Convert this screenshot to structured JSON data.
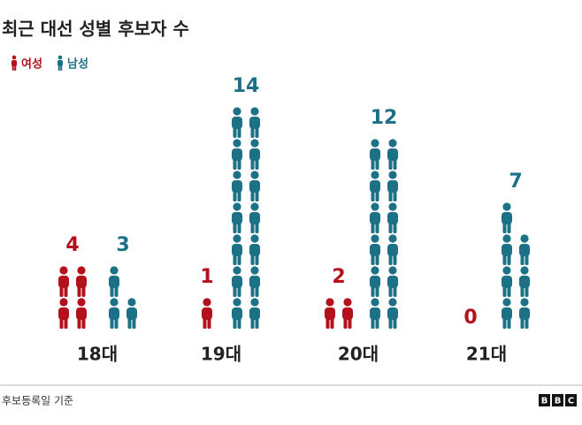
{
  "chart_data": {
    "type": "pictogram",
    "title": "최근 대선 성별 후보자 수",
    "categories": [
      "18대",
      "19대",
      "20대",
      "21대"
    ],
    "series": [
      {
        "name": "여성",
        "color": "#b3121d",
        "values": [
          4,
          1,
          2,
          0
        ]
      },
      {
        "name": "남성",
        "color": "#1c7186",
        "values": [
          3,
          14,
          12,
          7
        ]
      }
    ],
    "source": "후보등록일 기준",
    "logo": [
      "B",
      "B",
      "C"
    ]
  }
}
